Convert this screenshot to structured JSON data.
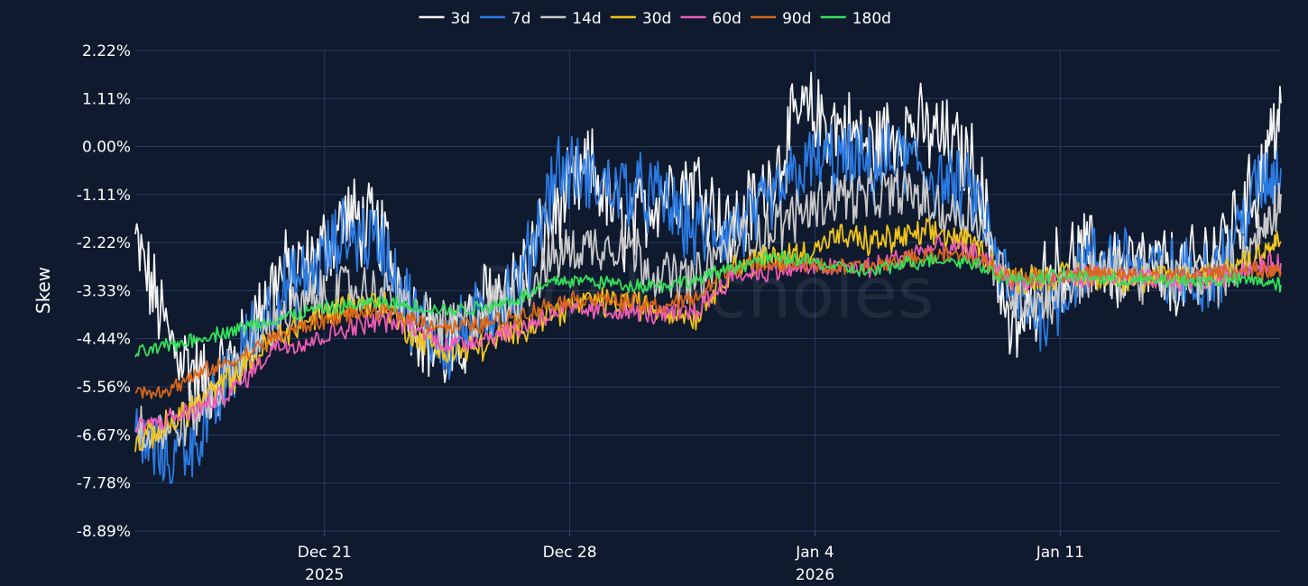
{
  "chart_data": {
    "type": "line",
    "title": "",
    "xlabel": "",
    "ylabel": "Skew",
    "watermark": "BlockScholes",
    "grid": true,
    "legend_position": "top-center",
    "ylim": [
      -8.89,
      2.22
    ],
    "yticks": [
      2.22,
      1.11,
      0.0,
      -1.11,
      -2.22,
      -3.33,
      -4.44,
      -5.56,
      -6.67,
      -7.78,
      -8.89
    ],
    "ytick_labels": [
      "2.22%",
      "1.11%",
      "0.00%",
      "-1.11%",
      "-2.22%",
      "-3.33%",
      "-4.44%",
      "-5.56%",
      "-6.67%",
      "-7.78%",
      "-8.89%"
    ],
    "xlim": [
      -5.4,
      27.3
    ],
    "x_unit": "days since Dec 21 2025",
    "xticks": [
      {
        "x": 0,
        "label": "Dec 21",
        "sublabel": "2025"
      },
      {
        "x": 7,
        "label": "Dec 28",
        "sublabel": ""
      },
      {
        "x": 14,
        "label": "Jan 4",
        "sublabel": "2026"
      },
      {
        "x": 21,
        "label": "Jan 11",
        "sublabel": ""
      }
    ],
    "series_x": [
      -5.4,
      -4.4,
      -3.4,
      -2.4,
      -1.4,
      -0.4,
      0.6,
      1.6,
      2.6,
      3.6,
      4.6,
      5.6,
      6.6,
      7.6,
      8.6,
      9.6,
      10.6,
      11.6,
      12.6,
      13.6,
      14.6,
      15.6,
      16.6,
      17.6,
      18.6,
      19.6,
      20.6,
      21.6,
      22.6,
      23.6,
      24.6,
      25.6,
      26.6,
      27.3
    ],
    "series": [
      {
        "name": "3d",
        "color": "#f2f2f2",
        "noise": 0.9,
        "values": [
          -2.2,
          -4.5,
          -5.5,
          -4.8,
          -3.0,
          -2.8,
          -1.6,
          -2.0,
          -4.0,
          -5.0,
          -3.5,
          -3.0,
          -1.5,
          -0.5,
          -2.0,
          -1.0,
          -0.8,
          -2.0,
          -1.0,
          0.8,
          0.5,
          0.0,
          0.5,
          0.2,
          -0.5,
          -4.5,
          -3.0,
          -2.5,
          -2.8,
          -2.8,
          -3.0,
          -2.2,
          -1.0,
          1.0
        ]
      },
      {
        "name": "7d",
        "color": "#2b7be4",
        "noise": 0.8,
        "values": [
          -6.8,
          -7.2,
          -6.5,
          -4.8,
          -3.5,
          -3.0,
          -2.0,
          -2.2,
          -4.0,
          -4.6,
          -3.8,
          -3.2,
          -0.5,
          -0.8,
          -1.0,
          -1.2,
          -2.0,
          -2.0,
          -1.5,
          -0.5,
          -0.3,
          -0.5,
          -0.3,
          -0.8,
          -1.2,
          -3.5,
          -3.8,
          -2.8,
          -2.5,
          -3.0,
          -3.0,
          -2.8,
          -1.0,
          -0.5
        ]
      },
      {
        "name": "14d",
        "color": "#c8c8c8",
        "noise": 0.55,
        "values": [
          -6.5,
          -6.6,
          -6.0,
          -5.0,
          -4.0,
          -3.6,
          -3.3,
          -3.4,
          -3.9,
          -4.2,
          -3.8,
          -3.5,
          -2.5,
          -2.3,
          -2.2,
          -3.0,
          -3.1,
          -2.2,
          -2.0,
          -1.5,
          -1.1,
          -1.2,
          -1.0,
          -1.5,
          -1.6,
          -3.4,
          -3.6,
          -3.0,
          -2.9,
          -3.1,
          -3.1,
          -3.0,
          -2.2,
          -1.1
        ]
      },
      {
        "name": "30d",
        "color": "#f0c419",
        "noise": 0.3,
        "values": [
          -6.9,
          -6.4,
          -5.8,
          -5.2,
          -4.4,
          -4.0,
          -3.7,
          -3.6,
          -4.4,
          -4.8,
          -4.6,
          -4.2,
          -3.8,
          -3.6,
          -3.6,
          -3.8,
          -3.9,
          -2.8,
          -2.6,
          -2.5,
          -2.1,
          -2.2,
          -2.1,
          -2.0,
          -2.3,
          -3.1,
          -3.0,
          -3.0,
          -3.0,
          -3.1,
          -3.0,
          -2.9,
          -2.5,
          -2.2
        ]
      },
      {
        "name": "60d",
        "color": "#ec5bb4",
        "noise": 0.22,
        "values": [
          -6.5,
          -6.3,
          -6.0,
          -5.5,
          -4.6,
          -4.5,
          -4.2,
          -4.0,
          -4.2,
          -4.6,
          -4.4,
          -4.2,
          -3.8,
          -3.8,
          -3.8,
          -3.9,
          -3.8,
          -3.0,
          -2.9,
          -2.8,
          -2.8,
          -2.8,
          -2.5,
          -2.3,
          -2.5,
          -3.1,
          -3.1,
          -3.0,
          -3.0,
          -3.1,
          -3.1,
          -3.0,
          -2.8,
          -2.7
        ]
      },
      {
        "name": "90d",
        "color": "#d8661a",
        "noise": 0.18,
        "values": [
          -5.7,
          -5.6,
          -5.2,
          -4.9,
          -4.4,
          -4.1,
          -3.9,
          -3.8,
          -4.0,
          -4.2,
          -4.1,
          -3.9,
          -3.6,
          -3.5,
          -3.6,
          -3.7,
          -3.5,
          -2.8,
          -2.7,
          -2.7,
          -2.8,
          -2.8,
          -2.6,
          -2.5,
          -2.6,
          -3.0,
          -3.0,
          -2.9,
          -3.0,
          -3.0,
          -3.0,
          -2.9,
          -2.9,
          -2.9
        ]
      },
      {
        "name": "180d",
        "color": "#35e05a",
        "noise": 0.15,
        "values": [
          -4.8,
          -4.6,
          -4.4,
          -4.2,
          -4.0,
          -3.8,
          -3.7,
          -3.6,
          -3.7,
          -3.8,
          -3.7,
          -3.5,
          -3.1,
          -3.1,
          -3.2,
          -3.2,
          -3.1,
          -2.8,
          -2.6,
          -2.6,
          -2.8,
          -2.9,
          -2.7,
          -2.6,
          -2.7,
          -3.1,
          -3.0,
          -3.0,
          -3.1,
          -3.1,
          -3.1,
          -3.1,
          -3.1,
          -3.2
        ]
      }
    ]
  }
}
